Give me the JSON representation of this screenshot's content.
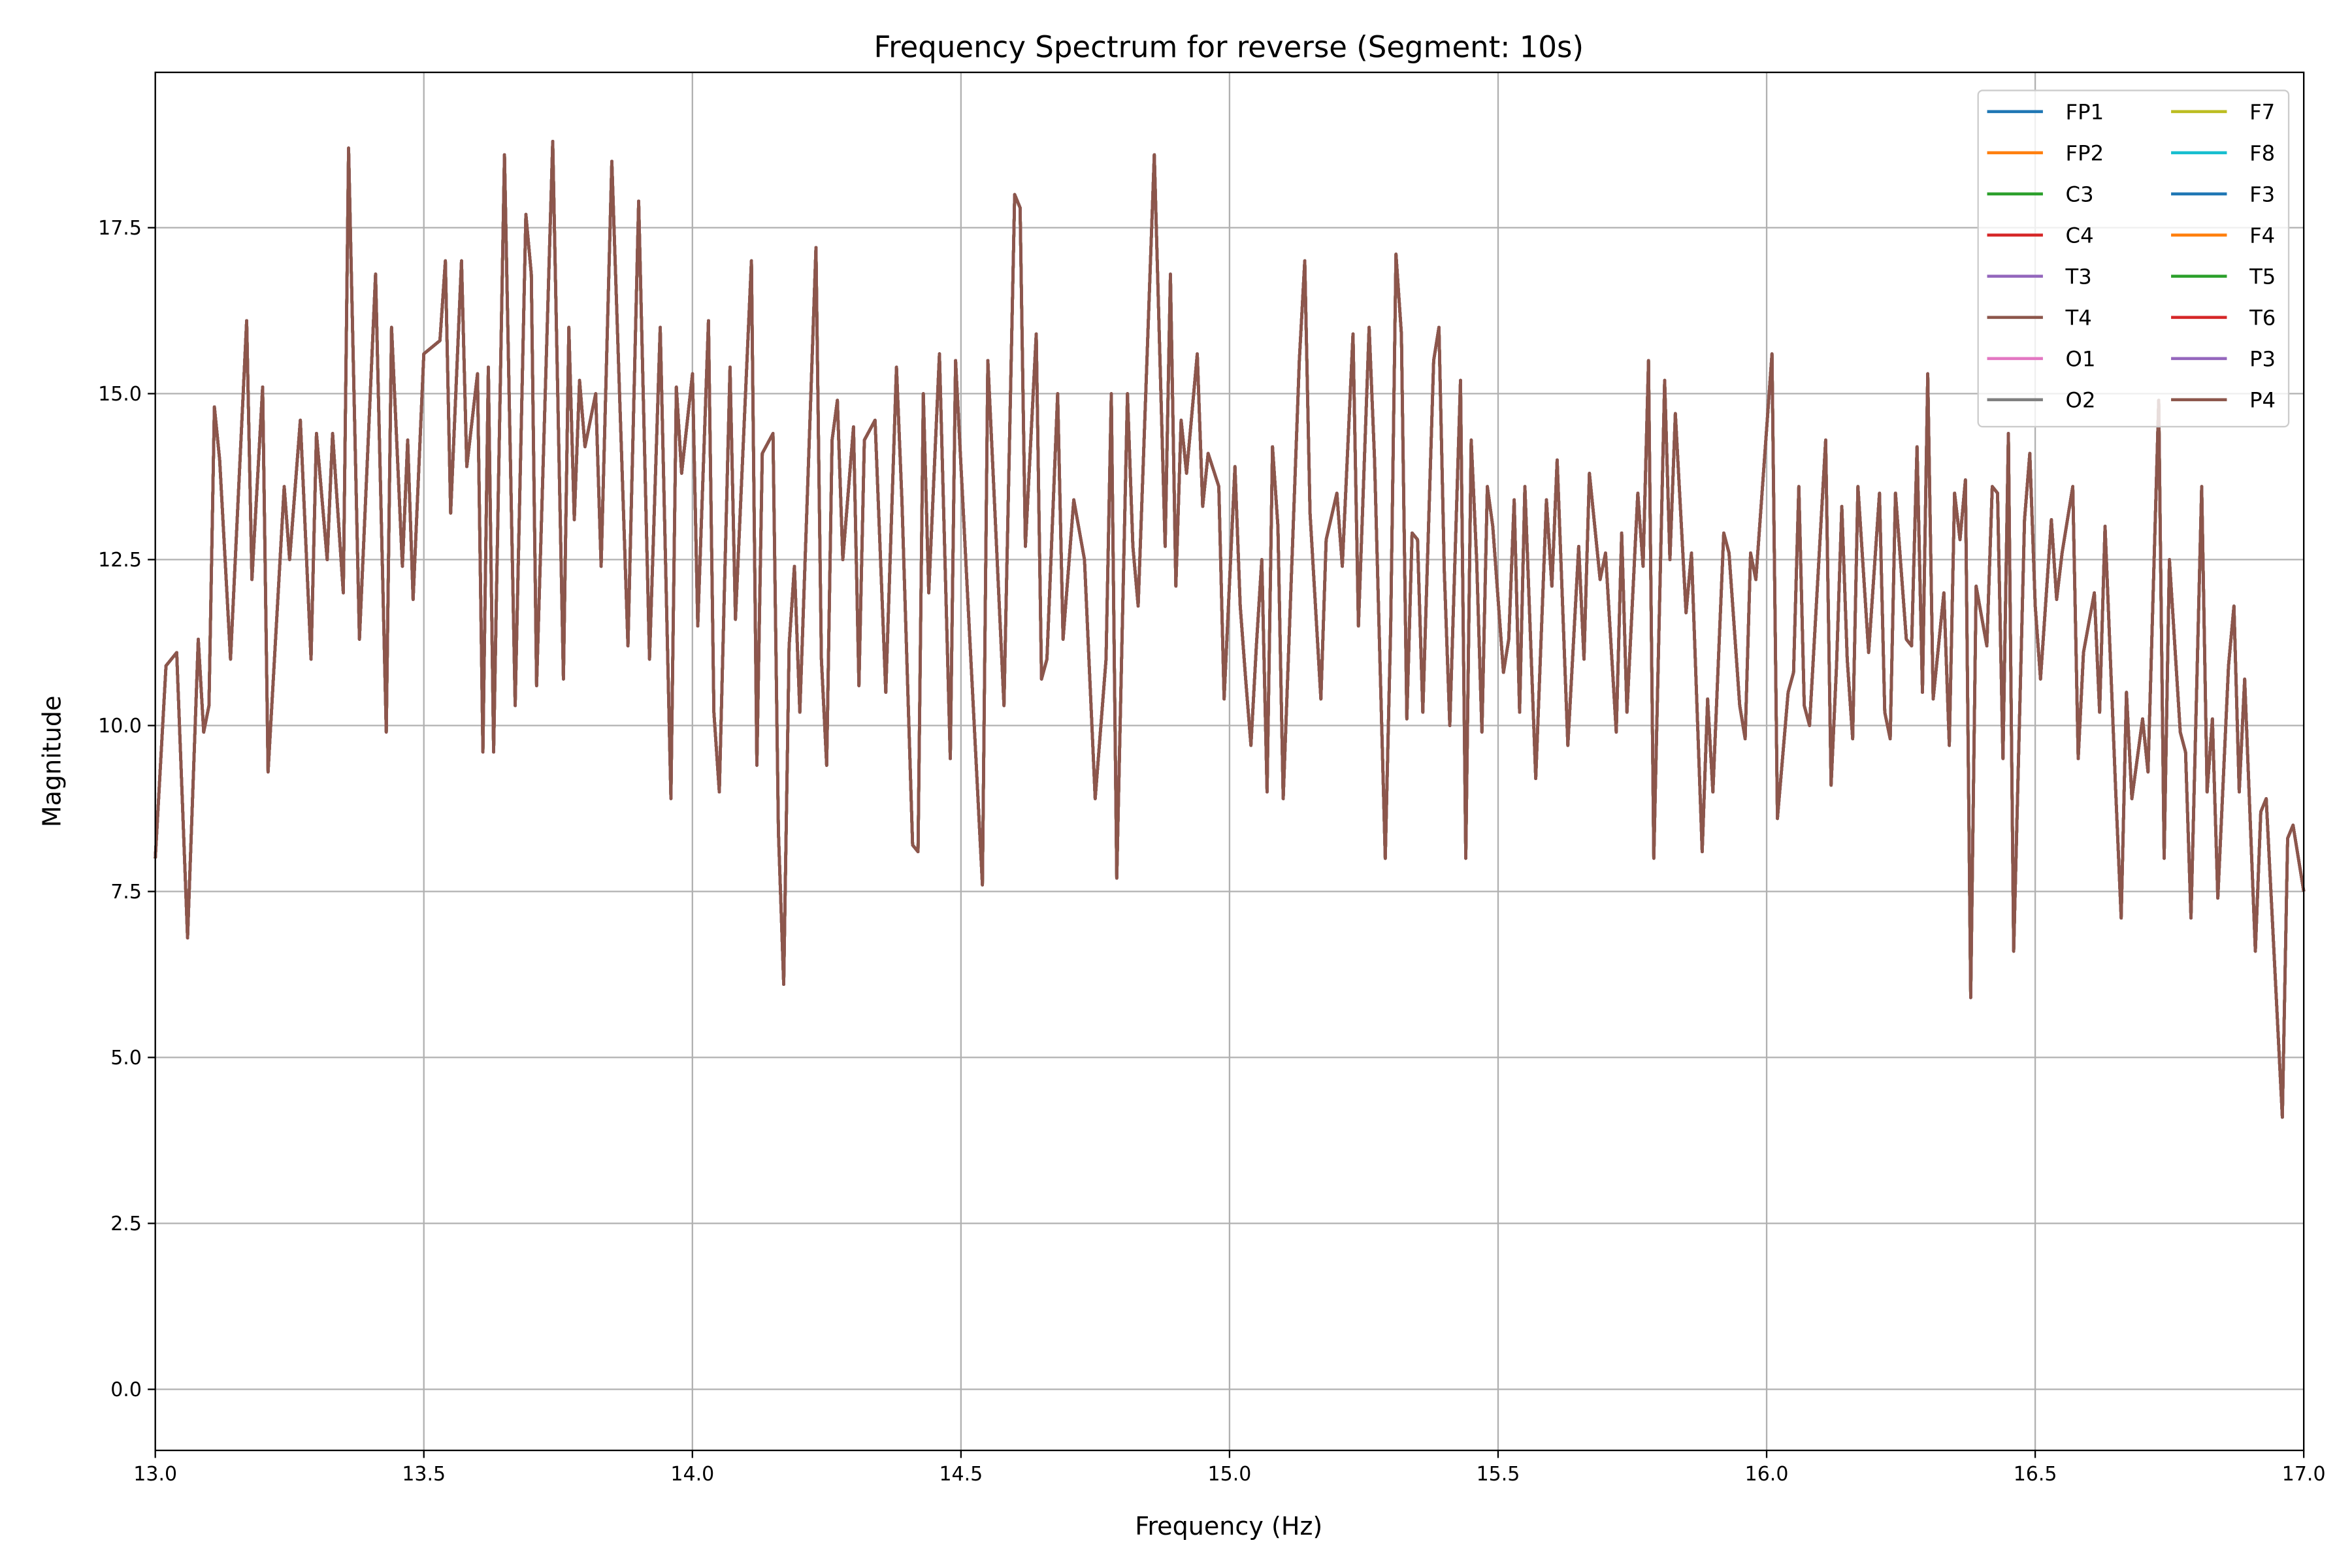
{
  "chart_data": {
    "type": "line",
    "title": "Frequency Spectrum for reverse (Segment: 10s)",
    "xlabel": "Frequency (Hz)",
    "ylabel": "Magnitude",
    "xlim": [
      13.0,
      17.0
    ],
    "ylim": [
      -0.92,
      19.84
    ],
    "xticks": [
      "13.0",
      "13.5",
      "14.0",
      "14.5",
      "15.0",
      "15.5",
      "16.0",
      "16.5",
      "17.0"
    ],
    "yticks": [
      "0.0",
      "2.5",
      "5.0",
      "7.5",
      "10.0",
      "12.5",
      "15.0",
      "17.5"
    ],
    "grid": true,
    "legend_placement": "top-right",
    "legend_columns": 2,
    "series": [
      {
        "name": "FP1",
        "color": "#1f77b4"
      },
      {
        "name": "FP2",
        "color": "#ff7f0e"
      },
      {
        "name": "C3",
        "color": "#2ca02c"
      },
      {
        "name": "C4",
        "color": "#d62728"
      },
      {
        "name": "T3",
        "color": "#9467bd"
      },
      {
        "name": "T4",
        "color": "#8c564b"
      },
      {
        "name": "O1",
        "color": "#e377c2"
      },
      {
        "name": "O2",
        "color": "#7f7f7f"
      },
      {
        "name": "F7",
        "color": "#bcbd22"
      },
      {
        "name": "F8",
        "color": "#17becf"
      },
      {
        "name": "F3",
        "color": "#1f77b4"
      },
      {
        "name": "F4",
        "color": "#ff7f0e"
      },
      {
        "name": "T5",
        "color": "#2ca02c"
      },
      {
        "name": "T6",
        "color": "#d62728"
      },
      {
        "name": "P3",
        "color": "#9467bd"
      },
      {
        "name": "P4",
        "color": "#8c564b"
      }
    ],
    "shared_points_approx": [
      [
        13.0,
        8.0
      ],
      [
        13.02,
        10.9
      ],
      [
        13.04,
        11.1
      ],
      [
        13.06,
        6.8
      ],
      [
        13.08,
        11.3
      ],
      [
        13.09,
        9.9
      ],
      [
        13.1,
        10.3
      ],
      [
        13.11,
        14.8
      ],
      [
        13.12,
        14.0
      ],
      [
        13.14,
        11.0
      ],
      [
        13.17,
        16.1
      ],
      [
        13.18,
        12.2
      ],
      [
        13.2,
        15.1
      ],
      [
        13.21,
        9.3
      ],
      [
        13.24,
        13.6
      ],
      [
        13.25,
        12.5
      ],
      [
        13.27,
        14.6
      ],
      [
        13.29,
        11.0
      ],
      [
        13.3,
        14.4
      ],
      [
        13.32,
        12.5
      ],
      [
        13.33,
        14.4
      ],
      [
        13.35,
        12.0
      ],
      [
        13.36,
        18.7
      ],
      [
        13.38,
        11.3
      ],
      [
        13.41,
        16.8
      ],
      [
        13.43,
        9.9
      ],
      [
        13.44,
        16.0
      ],
      [
        13.46,
        12.4
      ],
      [
        13.47,
        14.3
      ],
      [
        13.48,
        11.9
      ],
      [
        13.5,
        15.6
      ],
      [
        13.53,
        15.8
      ],
      [
        13.54,
        17.0
      ],
      [
        13.55,
        13.2
      ],
      [
        13.57,
        17.0
      ],
      [
        13.58,
        13.9
      ],
      [
        13.6,
        15.3
      ],
      [
        13.61,
        9.6
      ],
      [
        13.62,
        15.4
      ],
      [
        13.63,
        9.6
      ],
      [
        13.65,
        18.6
      ],
      [
        13.67,
        10.3
      ],
      [
        13.69,
        17.7
      ],
      [
        13.7,
        16.8
      ],
      [
        13.71,
        10.6
      ],
      [
        13.74,
        18.8
      ],
      [
        13.76,
        10.7
      ],
      [
        13.77,
        16.0
      ],
      [
        13.78,
        13.1
      ],
      [
        13.79,
        15.2
      ],
      [
        13.8,
        14.2
      ],
      [
        13.82,
        15.0
      ],
      [
        13.83,
        12.4
      ],
      [
        13.85,
        18.5
      ],
      [
        13.88,
        11.2
      ],
      [
        13.9,
        17.9
      ],
      [
        13.92,
        11.0
      ],
      [
        13.94,
        16.0
      ],
      [
        13.96,
        8.9
      ],
      [
        13.97,
        15.1
      ],
      [
        13.98,
        13.8
      ],
      [
        14.0,
        15.3
      ],
      [
        14.01,
        11.5
      ],
      [
        14.03,
        16.1
      ],
      [
        14.04,
        10.2
      ],
      [
        14.05,
        9.0
      ],
      [
        14.07,
        15.4
      ],
      [
        14.08,
        11.6
      ],
      [
        14.11,
        17.0
      ],
      [
        14.12,
        9.4
      ],
      [
        14.13,
        14.1
      ],
      [
        14.15,
        14.4
      ],
      [
        14.16,
        8.4
      ],
      [
        14.17,
        6.1
      ],
      [
        14.18,
        11.2
      ],
      [
        14.19,
        12.4
      ],
      [
        14.2,
        10.2
      ],
      [
        14.23,
        17.2
      ],
      [
        14.24,
        11.0
      ],
      [
        14.25,
        9.4
      ],
      [
        14.26,
        14.3
      ],
      [
        14.27,
        14.9
      ],
      [
        14.28,
        12.5
      ],
      [
        14.3,
        14.5
      ],
      [
        14.31,
        10.6
      ],
      [
        14.32,
        14.3
      ],
      [
        14.34,
        14.6
      ],
      [
        14.36,
        10.5
      ],
      [
        14.38,
        15.4
      ],
      [
        14.39,
        13.4
      ],
      [
        14.41,
        8.2
      ],
      [
        14.42,
        8.1
      ],
      [
        14.43,
        15.0
      ],
      [
        14.44,
        12.0
      ],
      [
        14.46,
        15.6
      ],
      [
        14.48,
        9.5
      ],
      [
        14.49,
        15.5
      ],
      [
        14.54,
        7.6
      ],
      [
        14.55,
        15.5
      ],
      [
        14.58,
        10.3
      ],
      [
        14.6,
        18.0
      ],
      [
        14.61,
        17.8
      ],
      [
        14.62,
        12.7
      ],
      [
        14.64,
        15.9
      ],
      [
        14.65,
        10.7
      ],
      [
        14.66,
        11.0
      ],
      [
        14.68,
        15.0
      ],
      [
        14.69,
        11.3
      ],
      [
        14.71,
        13.4
      ],
      [
        14.73,
        12.5
      ],
      [
        14.75,
        8.9
      ],
      [
        14.77,
        11.0
      ],
      [
        14.78,
        15.0
      ],
      [
        14.79,
        7.7
      ],
      [
        14.81,
        15.0
      ],
      [
        14.82,
        12.7
      ],
      [
        14.83,
        11.8
      ],
      [
        14.86,
        18.6
      ],
      [
        14.88,
        12.7
      ],
      [
        14.89,
        16.8
      ],
      [
        14.9,
        12.1
      ],
      [
        14.91,
        14.6
      ],
      [
        14.92,
        13.8
      ],
      [
        14.94,
        15.6
      ],
      [
        14.95,
        13.3
      ],
      [
        14.96,
        14.1
      ],
      [
        14.98,
        13.6
      ],
      [
        14.99,
        10.4
      ],
      [
        15.01,
        13.9
      ],
      [
        15.02,
        11.8
      ],
      [
        15.03,
        10.7
      ],
      [
        15.04,
        9.7
      ],
      [
        15.05,
        11.2
      ],
      [
        15.06,
        12.5
      ],
      [
        15.07,
        9.0
      ],
      [
        15.08,
        14.2
      ],
      [
        15.09,
        13.0
      ],
      [
        15.1,
        8.9
      ],
      [
        15.13,
        15.5
      ],
      [
        15.14,
        17.0
      ],
      [
        15.15,
        13.2
      ],
      [
        15.17,
        10.4
      ],
      [
        15.18,
        12.8
      ],
      [
        15.2,
        13.5
      ],
      [
        15.21,
        12.4
      ],
      [
        15.23,
        15.9
      ],
      [
        15.24,
        11.5
      ],
      [
        15.26,
        16.0
      ],
      [
        15.27,
        14.0
      ],
      [
        15.29,
        8.0
      ],
      [
        15.3,
        11.5
      ],
      [
        15.31,
        17.1
      ],
      [
        15.32,
        15.9
      ],
      [
        15.33,
        10.1
      ],
      [
        15.34,
        12.9
      ],
      [
        15.35,
        12.8
      ],
      [
        15.36,
        10.2
      ],
      [
        15.38,
        15.5
      ],
      [
        15.39,
        16.0
      ],
      [
        15.4,
        12.3
      ],
      [
        15.41,
        10.0
      ],
      [
        15.43,
        15.2
      ],
      [
        15.44,
        8.0
      ],
      [
        15.45,
        14.3
      ],
      [
        15.46,
        12.5
      ],
      [
        15.47,
        9.9
      ],
      [
        15.48,
        13.6
      ],
      [
        15.49,
        13.0
      ],
      [
        15.51,
        10.8
      ],
      [
        15.52,
        11.3
      ],
      [
        15.53,
        13.4
      ],
      [
        15.54,
        10.2
      ],
      [
        15.55,
        13.6
      ],
      [
        15.57,
        9.2
      ],
      [
        15.59,
        13.4
      ],
      [
        15.6,
        12.1
      ],
      [
        15.61,
        14.0
      ],
      [
        15.63,
        9.7
      ],
      [
        15.64,
        11.2
      ],
      [
        15.65,
        12.7
      ],
      [
        15.66,
        11.0
      ],
      [
        15.67,
        13.8
      ],
      [
        15.69,
        12.2
      ],
      [
        15.7,
        12.6
      ],
      [
        15.72,
        9.9
      ],
      [
        15.73,
        12.9
      ],
      [
        15.74,
        10.2
      ],
      [
        15.76,
        13.5
      ],
      [
        15.77,
        12.4
      ],
      [
        15.78,
        15.5
      ],
      [
        15.79,
        8.0
      ],
      [
        15.81,
        15.2
      ],
      [
        15.82,
        12.5
      ],
      [
        15.83,
        14.7
      ],
      [
        15.85,
        11.7
      ],
      [
        15.86,
        12.6
      ],
      [
        15.88,
        8.1
      ],
      [
        15.89,
        10.4
      ],
      [
        15.9,
        9.0
      ],
      [
        15.92,
        12.9
      ],
      [
        15.93,
        12.6
      ],
      [
        15.95,
        10.3
      ],
      [
        15.96,
        9.8
      ],
      [
        15.97,
        12.6
      ],
      [
        15.98,
        12.2
      ],
      [
        16.01,
        15.6
      ],
      [
        16.02,
        8.6
      ],
      [
        16.04,
        10.5
      ],
      [
        16.05,
        10.8
      ],
      [
        16.06,
        13.6
      ],
      [
        16.07,
        10.3
      ],
      [
        16.08,
        10.0
      ],
      [
        16.11,
        14.3
      ],
      [
        16.12,
        9.1
      ],
      [
        16.13,
        10.9
      ],
      [
        16.14,
        13.3
      ],
      [
        16.15,
        11.0
      ],
      [
        16.16,
        9.8
      ],
      [
        16.17,
        13.6
      ],
      [
        16.19,
        11.1
      ],
      [
        16.21,
        13.5
      ],
      [
        16.22,
        10.2
      ],
      [
        16.23,
        9.8
      ],
      [
        16.24,
        13.5
      ],
      [
        16.26,
        11.3
      ],
      [
        16.27,
        11.2
      ],
      [
        16.28,
        14.2
      ],
      [
        16.29,
        10.5
      ],
      [
        16.3,
        15.3
      ],
      [
        16.31,
        10.4
      ],
      [
        16.33,
        12.0
      ],
      [
        16.34,
        9.7
      ],
      [
        16.35,
        13.5
      ],
      [
        16.36,
        12.8
      ],
      [
        16.37,
        13.7
      ],
      [
        16.38,
        5.9
      ],
      [
        16.39,
        12.1
      ],
      [
        16.41,
        11.2
      ],
      [
        16.42,
        13.6
      ],
      [
        16.43,
        13.5
      ],
      [
        16.44,
        9.5
      ],
      [
        16.45,
        14.4
      ],
      [
        16.46,
        6.6
      ],
      [
        16.48,
        13.1
      ],
      [
        16.49,
        14.1
      ],
      [
        16.5,
        11.8
      ],
      [
        16.51,
        10.7
      ],
      [
        16.53,
        13.1
      ],
      [
        16.54,
        11.9
      ],
      [
        16.55,
        12.6
      ],
      [
        16.57,
        13.6
      ],
      [
        16.58,
        9.5
      ],
      [
        16.59,
        11.1
      ],
      [
        16.61,
        12.0
      ],
      [
        16.62,
        10.2
      ],
      [
        16.63,
        13.0
      ],
      [
        16.65,
        9.0
      ],
      [
        16.66,
        7.1
      ],
      [
        16.67,
        10.5
      ],
      [
        16.68,
        8.9
      ],
      [
        16.7,
        10.1
      ],
      [
        16.71,
        9.3
      ],
      [
        16.73,
        14.9
      ],
      [
        16.74,
        8.0
      ],
      [
        16.75,
        12.5
      ],
      [
        16.77,
        9.9
      ],
      [
        16.78,
        9.6
      ],
      [
        16.79,
        7.1
      ],
      [
        16.81,
        13.6
      ],
      [
        16.82,
        9.0
      ],
      [
        16.83,
        10.1
      ],
      [
        16.84,
        7.4
      ],
      [
        16.86,
        10.9
      ],
      [
        16.87,
        11.8
      ],
      [
        16.88,
        9.0
      ],
      [
        16.89,
        10.7
      ],
      [
        16.91,
        6.6
      ],
      [
        16.92,
        8.7
      ],
      [
        16.93,
        8.9
      ],
      [
        16.96,
        4.1
      ],
      [
        16.97,
        8.3
      ],
      [
        16.98,
        8.5
      ],
      [
        17.0,
        7.5
      ]
    ]
  }
}
